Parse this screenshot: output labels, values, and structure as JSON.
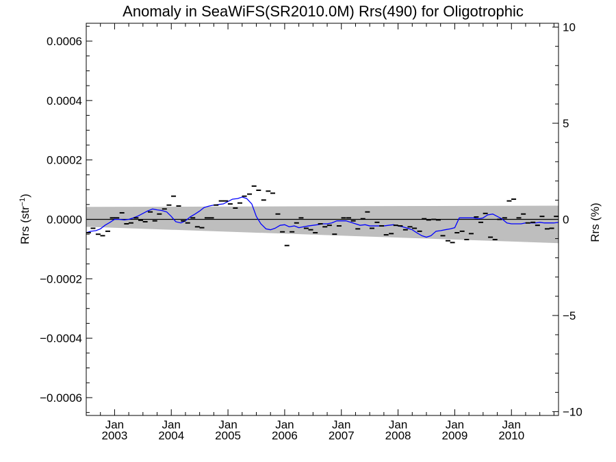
{
  "chart_data": {
    "type": "line",
    "title": "Anomaly in SeaWiFS(SR2010.0M) Rrs(490) for Oligotrophic",
    "ylabel_base": "Rrs (str",
    "ylabel_sup": "−1",
    "ylabel_close": ")",
    "y2label": "Rrs (%)",
    "xlim": [
      2002.5,
      2010.83
    ],
    "ylim": [
      -0.00066,
      0.00066
    ],
    "y2lim": [
      -10.2,
      10.2
    ],
    "grid": false,
    "yticks": [
      {
        "value": 0.0006,
        "label": "0.0006"
      },
      {
        "value": 0.0004,
        "label": "0.0004"
      },
      {
        "value": 0.0002,
        "label": "0.0002"
      },
      {
        "value": 0.0,
        "label": "0.0000"
      },
      {
        "value": -0.0002,
        "label": "−0.0002"
      },
      {
        "value": -0.0004,
        "label": "−0.0004"
      },
      {
        "value": -0.0006,
        "label": "−0.0006"
      }
    ],
    "y2ticks": [
      {
        "value": 10,
        "label": "10"
      },
      {
        "value": 5,
        "label": "5"
      },
      {
        "value": 0,
        "label": "0"
      },
      {
        "value": -5,
        "label": "−5"
      },
      {
        "value": -10,
        "label": "−10"
      }
    ],
    "xticks": [
      {
        "value": 2003.0,
        "month": "Jan",
        "year": "2003"
      },
      {
        "value": 2004.0,
        "month": "Jan",
        "year": "2004"
      },
      {
        "value": 2005.0,
        "month": "Jan",
        "year": "2005"
      },
      {
        "value": 2006.0,
        "month": "Jan",
        "year": "2006"
      },
      {
        "value": 2007.0,
        "month": "Jan",
        "year": "2007"
      },
      {
        "value": 2008.0,
        "month": "Jan",
        "year": "2008"
      },
      {
        "value": 2009.0,
        "month": "Jan",
        "year": "2009"
      },
      {
        "value": 2010.0,
        "month": "Jan",
        "year": "2010"
      }
    ],
    "envelope": {
      "x": [
        2002.5,
        2010.83
      ],
      "upper": [
        4.2e-05,
        4.6e-05
      ],
      "lower": [
        -2.5e-05,
        -8e-05
      ],
      "color": "#bebebe"
    },
    "zero_line": {
      "value": 0.0,
      "color": "#000000"
    },
    "monthly_points": {
      "color": "#000000",
      "x": [
        2002.54,
        2002.62,
        2002.71,
        2002.79,
        2002.88,
        2002.96,
        2003.04,
        2003.13,
        2003.21,
        2003.29,
        2003.38,
        2003.46,
        2003.54,
        2003.63,
        2003.71,
        2003.79,
        2003.88,
        2003.96,
        2004.04,
        2004.13,
        2004.21,
        2004.29,
        2004.38,
        2004.46,
        2004.54,
        2004.63,
        2004.71,
        2004.79,
        2004.88,
        2004.96,
        2005.04,
        2005.13,
        2005.21,
        2005.29,
        2005.38,
        2005.46,
        2005.54,
        2005.63,
        2005.71,
        2005.79,
        2005.88,
        2005.96,
        2006.04,
        2006.13,
        2006.21,
        2006.29,
        2006.38,
        2006.46,
        2006.54,
        2006.63,
        2006.71,
        2006.79,
        2006.88,
        2006.96,
        2007.04,
        2007.13,
        2007.21,
        2007.29,
        2007.38,
        2007.46,
        2007.54,
        2007.63,
        2007.71,
        2007.79,
        2007.88,
        2007.96,
        2008.04,
        2008.13,
        2008.21,
        2008.29,
        2008.38,
        2008.46,
        2008.54,
        2008.63,
        2008.71,
        2008.79,
        2008.88,
        2008.96,
        2009.04,
        2009.13,
        2009.21,
        2009.29,
        2009.38,
        2009.46,
        2009.54,
        2009.63,
        2009.71,
        2009.79,
        2009.88,
        2009.96,
        2010.04,
        2010.13,
        2010.21,
        2010.29,
        2010.38,
        2010.46,
        2010.54,
        2010.63,
        2010.71,
        2010.79
      ],
      "values": [
        -4.5e-05,
        -3e-05,
        -5e-05,
        -5.5e-05,
        -4e-05,
        5e-06,
        5e-06,
        2.2e-05,
        -1.5e-05,
        -1.2e-05,
        5e-06,
        -3e-06,
        -8e-06,
        2.5e-05,
        -5e-06,
        1.8e-05,
        3.5e-05,
        4.8e-05,
        7.8e-05,
        4.5e-05,
        -5e-06,
        -1.2e-05,
        5e-06,
        -2.5e-05,
        -2.8e-05,
        5e-06,
        5e-06,
        4.8e-05,
        6.2e-05,
        6.2e-05,
        5.2e-05,
        3.8e-05,
        5.5e-05,
        7.8e-05,
        8.5e-05,
        0.000112,
        9.8e-05,
        6.5e-05,
        9.5e-05,
        8.8e-05,
        1.8e-05,
        -4.2e-05,
        -8.8e-05,
        -4.2e-05,
        -1.2e-05,
        5e-06,
        -3e-05,
        -3.5e-05,
        -4.5e-05,
        -1.5e-05,
        -2.5e-05,
        -2e-05,
        -5e-05,
        -2.2e-05,
        5e-06,
        5e-06,
        -5e-06,
        -3.2e-05,
        2e-06,
        2.5e-05,
        -3e-05,
        -1e-05,
        -2.2e-05,
        -5.2e-05,
        -4.8e-05,
        -2e-05,
        -2.2e-05,
        -3.5e-05,
        -2.5e-05,
        -3e-05,
        -4e-05,
        2e-06,
        -2e-06,
        0.0,
        -2e-06,
        -5.5e-05,
        -7.2e-05,
        -7.8e-05,
        -4.5e-05,
        -4e-05,
        -6.8e-05,
        -4.8e-05,
        8e-06,
        -1e-05,
        2e-05,
        -6e-05,
        -6.8e-05,
        0.0,
        5e-06,
        6.2e-05,
        6.8e-05,
        5e-06,
        1.8e-05,
        -1.2e-05,
        -1e-05,
        -2e-05,
        1e-05,
        -3.2e-05,
        -3e-05,
        1e-05
      ]
    },
    "series": [
      {
        "color": "#0000ff",
        "x": [
          2002.5,
          2002.58,
          2002.67,
          2002.75,
          2002.83,
          2002.92,
          2003.0,
          2003.08,
          2003.17,
          2003.25,
          2003.33,
          2003.42,
          2003.5,
          2003.58,
          2003.67,
          2003.75,
          2003.83,
          2003.92,
          2004.0,
          2004.08,
          2004.17,
          2004.25,
          2004.33,
          2004.42,
          2004.5,
          2004.58,
          2004.67,
          2004.75,
          2004.83,
          2004.92,
          2005.0,
          2005.08,
          2005.17,
          2005.25,
          2005.33,
          2005.42,
          2005.5,
          2005.58,
          2005.67,
          2005.75,
          2005.83,
          2005.92,
          2006.0,
          2006.08,
          2006.17,
          2006.25,
          2006.33,
          2006.42,
          2006.5,
          2006.58,
          2006.67,
          2006.75,
          2006.83,
          2006.92,
          2007.0,
          2007.08,
          2007.17,
          2007.25,
          2007.33,
          2007.42,
          2007.5,
          2007.58,
          2007.67,
          2007.75,
          2007.83,
          2007.92,
          2008.0,
          2008.08,
          2008.17,
          2008.25,
          2008.33,
          2008.42,
          2008.5,
          2008.58,
          2008.67,
          2008.75,
          2008.83,
          2008.92,
          2009.0,
          2009.08,
          2009.17,
          2009.25,
          2009.33,
          2009.42,
          2009.5,
          2009.58,
          2009.67,
          2009.75,
          2009.83,
          2009.92,
          2010.0,
          2010.08,
          2010.17,
          2010.25,
          2010.33,
          2010.42,
          2010.5,
          2010.58,
          2010.67,
          2010.75,
          2010.83
        ],
        "values": [
          -4.5e-05,
          -4e-05,
          -3.8e-05,
          -3.2e-05,
          -2e-05,
          -1e-05,
          0.0,
          0.0,
          -2e-06,
          0.0,
          5e-06,
          1.2e-05,
          2e-05,
          2.8e-05,
          3.5e-05,
          3.2e-05,
          3e-05,
          2.5e-05,
          1e-05,
          -8e-06,
          -1.2e-05,
          -5e-06,
          8e-06,
          1.8e-05,
          2.8e-05,
          4e-05,
          4.5e-05,
          4.8e-05,
          5e-05,
          5.2e-05,
          6e-05,
          6.8e-05,
          7e-05,
          7.5e-05,
          7e-05,
          5.2e-05,
          1e-05,
          -1.5e-05,
          -3.2e-05,
          -3.5e-05,
          -3e-05,
          -2e-05,
          -1.8e-05,
          -2.5e-05,
          -2.2e-05,
          -2.8e-05,
          -2.5e-05,
          -2.2e-05,
          -2e-05,
          -1.8e-05,
          -1.5e-05,
          -1.5e-05,
          -1.2e-05,
          -5e-06,
          -5e-06,
          -5e-06,
          -1e-05,
          -1.5e-05,
          -2e-05,
          -1.8e-05,
          -2.2e-05,
          -2.2e-05,
          -2.2e-05,
          -2.2e-05,
          -2e-05,
          -1.8e-05,
          -2.2e-05,
          -2.5e-05,
          -3e-05,
          -3.5e-05,
          -4.5e-05,
          -5.5e-05,
          -6e-05,
          -5.5e-05,
          -4e-05,
          -3.8e-05,
          -3.5e-05,
          -3.2e-05,
          -2.8e-05,
          5e-06,
          5e-06,
          5e-06,
          5e-06,
          2e-06,
          5e-06,
          1.5e-05,
          1.8e-05,
          1e-05,
          2e-06,
          -1.2e-05,
          -1.5e-05,
          -1.5e-05,
          -1.5e-05,
          -1.2e-05,
          -1.2e-05,
          -1.2e-05,
          -1e-05,
          -1.2e-05,
          -1.2e-05,
          -1.2e-05,
          -1e-05
        ]
      }
    ]
  }
}
